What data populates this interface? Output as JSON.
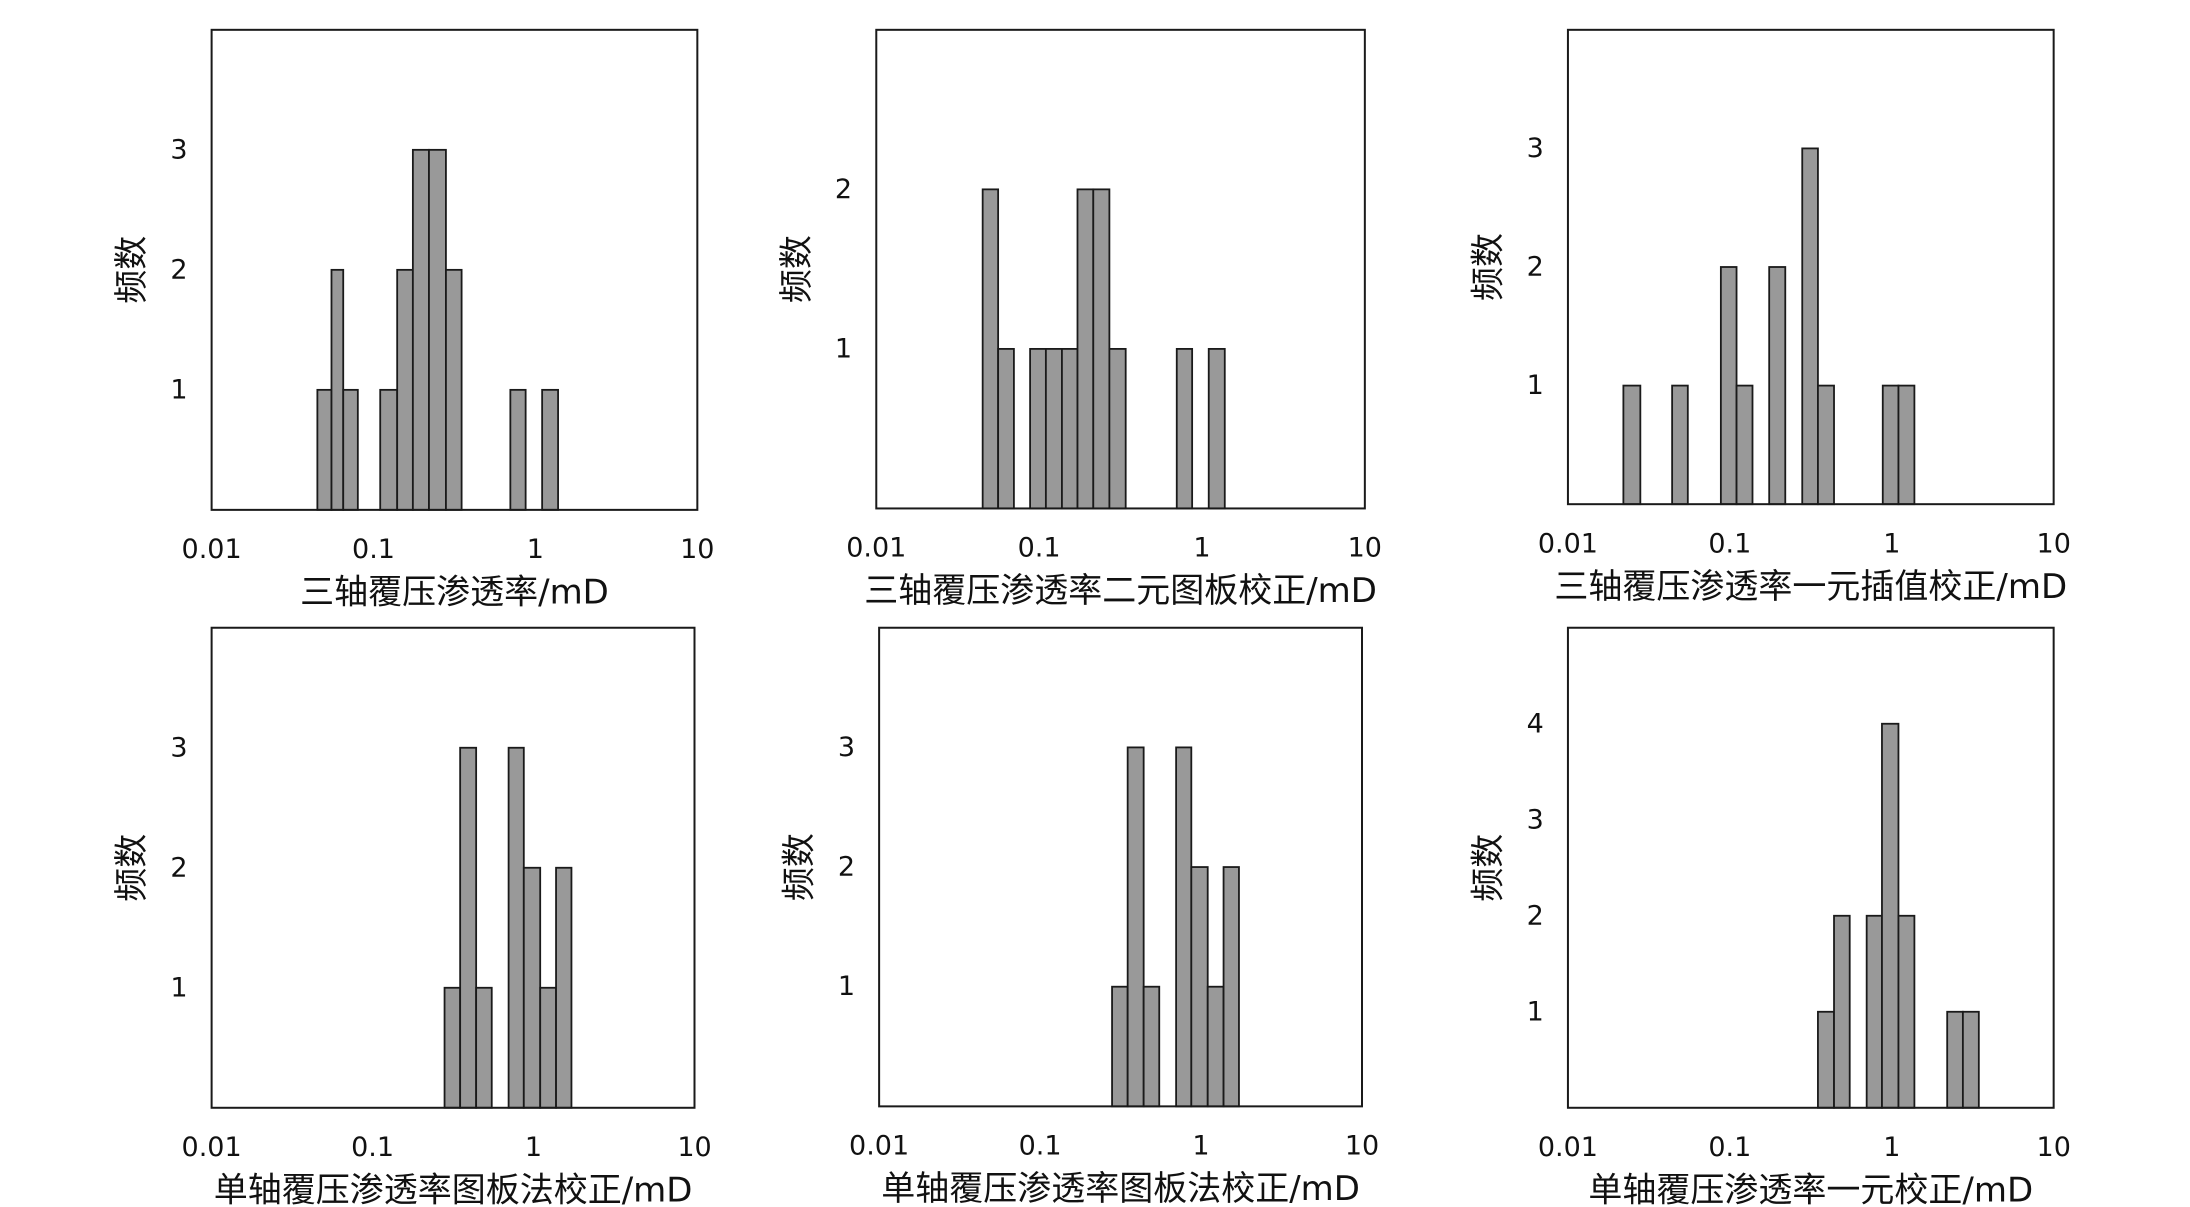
{
  "chart_data": [
    {
      "type": "bar",
      "xlabel": "三轴覆压渗透率/mD",
      "ylabel": "频数",
      "xscale": "log",
      "xlim": [
        0.01,
        10
      ],
      "ylim": [
        0,
        4
      ],
      "x_ticks": [
        "0.01",
        "0.1",
        "1",
        "10"
      ],
      "y_ticks": [
        1,
        2,
        3
      ],
      "bar_color": "#999999",
      "bins": [
        {
          "start": 0.045,
          "end": 0.055,
          "value": 1
        },
        {
          "start": 0.055,
          "end": 0.065,
          "value": 2
        },
        {
          "start": 0.065,
          "end": 0.08,
          "value": 1
        },
        {
          "start": 0.11,
          "end": 0.14,
          "value": 1
        },
        {
          "start": 0.14,
          "end": 0.175,
          "value": 2
        },
        {
          "start": 0.175,
          "end": 0.22,
          "value": 3
        },
        {
          "start": 0.22,
          "end": 0.28,
          "value": 3
        },
        {
          "start": 0.28,
          "end": 0.35,
          "value": 2
        },
        {
          "start": 0.7,
          "end": 0.87,
          "value": 1
        },
        {
          "start": 1.1,
          "end": 1.38,
          "value": 1
        }
      ]
    },
    {
      "type": "bar",
      "xlabel": "三轴覆压渗透率二元图板校正/mD",
      "ylabel": "频数",
      "xscale": "log",
      "xlim": [
        0.01,
        10
      ],
      "ylim": [
        0,
        3
      ],
      "x_ticks": [
        "0.01",
        "0.1",
        "1",
        "10"
      ],
      "y_ticks": [
        1,
        2
      ],
      "bar_color": "#999999",
      "bins": [
        {
          "start": 0.045,
          "end": 0.056,
          "value": 2
        },
        {
          "start": 0.056,
          "end": 0.07,
          "value": 1
        },
        {
          "start": 0.088,
          "end": 0.11,
          "value": 1
        },
        {
          "start": 0.11,
          "end": 0.138,
          "value": 1
        },
        {
          "start": 0.138,
          "end": 0.172,
          "value": 1
        },
        {
          "start": 0.172,
          "end": 0.215,
          "value": 2
        },
        {
          "start": 0.215,
          "end": 0.27,
          "value": 2
        },
        {
          "start": 0.27,
          "end": 0.34,
          "value": 1
        },
        {
          "start": 0.7,
          "end": 0.87,
          "value": 1
        },
        {
          "start": 1.1,
          "end": 1.38,
          "value": 1
        }
      ]
    },
    {
      "type": "bar",
      "xlabel": "三轴覆压渗透率一元插值校正/mD",
      "ylabel": "频数",
      "xscale": "log",
      "xlim": [
        0.01,
        10
      ],
      "ylim": [
        0,
        4
      ],
      "x_ticks": [
        "0.01",
        "0.1",
        "1",
        "10"
      ],
      "y_ticks": [
        1,
        2,
        3
      ],
      "bar_color": "#999999",
      "bins": [
        {
          "start": 0.022,
          "end": 0.028,
          "value": 1
        },
        {
          "start": 0.044,
          "end": 0.055,
          "value": 1
        },
        {
          "start": 0.088,
          "end": 0.11,
          "value": 2
        },
        {
          "start": 0.11,
          "end": 0.138,
          "value": 1
        },
        {
          "start": 0.175,
          "end": 0.22,
          "value": 2
        },
        {
          "start": 0.28,
          "end": 0.35,
          "value": 3
        },
        {
          "start": 0.35,
          "end": 0.44,
          "value": 1
        },
        {
          "start": 0.88,
          "end": 1.1,
          "value": 1
        },
        {
          "start": 1.1,
          "end": 1.38,
          "value": 1
        }
      ]
    },
    {
      "type": "bar",
      "xlabel": "单轴覆压渗透率图板法校正/mD",
      "ylabel": "频数",
      "xscale": "log",
      "xlim": [
        0.01,
        10
      ],
      "ylim": [
        0,
        4
      ],
      "x_ticks": [
        "0.01",
        "0.1",
        "1",
        "10"
      ],
      "y_ticks": [
        1,
        2,
        3
      ],
      "bar_color": "#999999",
      "bins": [
        {
          "start": 0.28,
          "end": 0.35,
          "value": 1
        },
        {
          "start": 0.35,
          "end": 0.44,
          "value": 3
        },
        {
          "start": 0.44,
          "end": 0.55,
          "value": 1
        },
        {
          "start": 0.7,
          "end": 0.87,
          "value": 3
        },
        {
          "start": 0.87,
          "end": 1.1,
          "value": 2
        },
        {
          "start": 1.1,
          "end": 1.38,
          "value": 1
        },
        {
          "start": 1.38,
          "end": 1.72,
          "value": 2
        }
      ]
    },
    {
      "type": "bar",
      "xlabel": "单轴覆压渗透率图板法校正/mD",
      "ylabel": "频数",
      "xscale": "log",
      "xlim": [
        0.01,
        10
      ],
      "ylim": [
        0,
        4
      ],
      "x_ticks": [
        "0.01",
        "0.1",
        "1",
        "10"
      ],
      "y_ticks": [
        1,
        2,
        3
      ],
      "bar_color": "#999999",
      "bins": [
        {
          "start": 0.28,
          "end": 0.35,
          "value": 1
        },
        {
          "start": 0.35,
          "end": 0.44,
          "value": 3
        },
        {
          "start": 0.44,
          "end": 0.55,
          "value": 1
        },
        {
          "start": 0.7,
          "end": 0.87,
          "value": 3
        },
        {
          "start": 0.87,
          "end": 1.1,
          "value": 2
        },
        {
          "start": 1.1,
          "end": 1.38,
          "value": 1
        },
        {
          "start": 1.38,
          "end": 1.72,
          "value": 2
        }
      ]
    },
    {
      "type": "bar",
      "xlabel": "单轴覆压渗透率一元校正/mD",
      "ylabel": "频数",
      "xscale": "log",
      "xlim": [
        0.01,
        10
      ],
      "ylim": [
        0,
        5
      ],
      "x_ticks": [
        "0.01",
        "0.1",
        "1",
        "10"
      ],
      "y_ticks": [
        1,
        2,
        3,
        4
      ],
      "bar_color": "#999999",
      "bins": [
        {
          "start": 0.35,
          "end": 0.44,
          "value": 1
        },
        {
          "start": 0.44,
          "end": 0.55,
          "value": 2
        },
        {
          "start": 0.7,
          "end": 0.87,
          "value": 2
        },
        {
          "start": 0.87,
          "end": 1.1,
          "value": 4
        },
        {
          "start": 1.1,
          "end": 1.38,
          "value": 2
        },
        {
          "start": 2.2,
          "end": 2.75,
          "value": 1
        },
        {
          "start": 2.75,
          "end": 3.45,
          "value": 1
        }
      ]
    }
  ]
}
